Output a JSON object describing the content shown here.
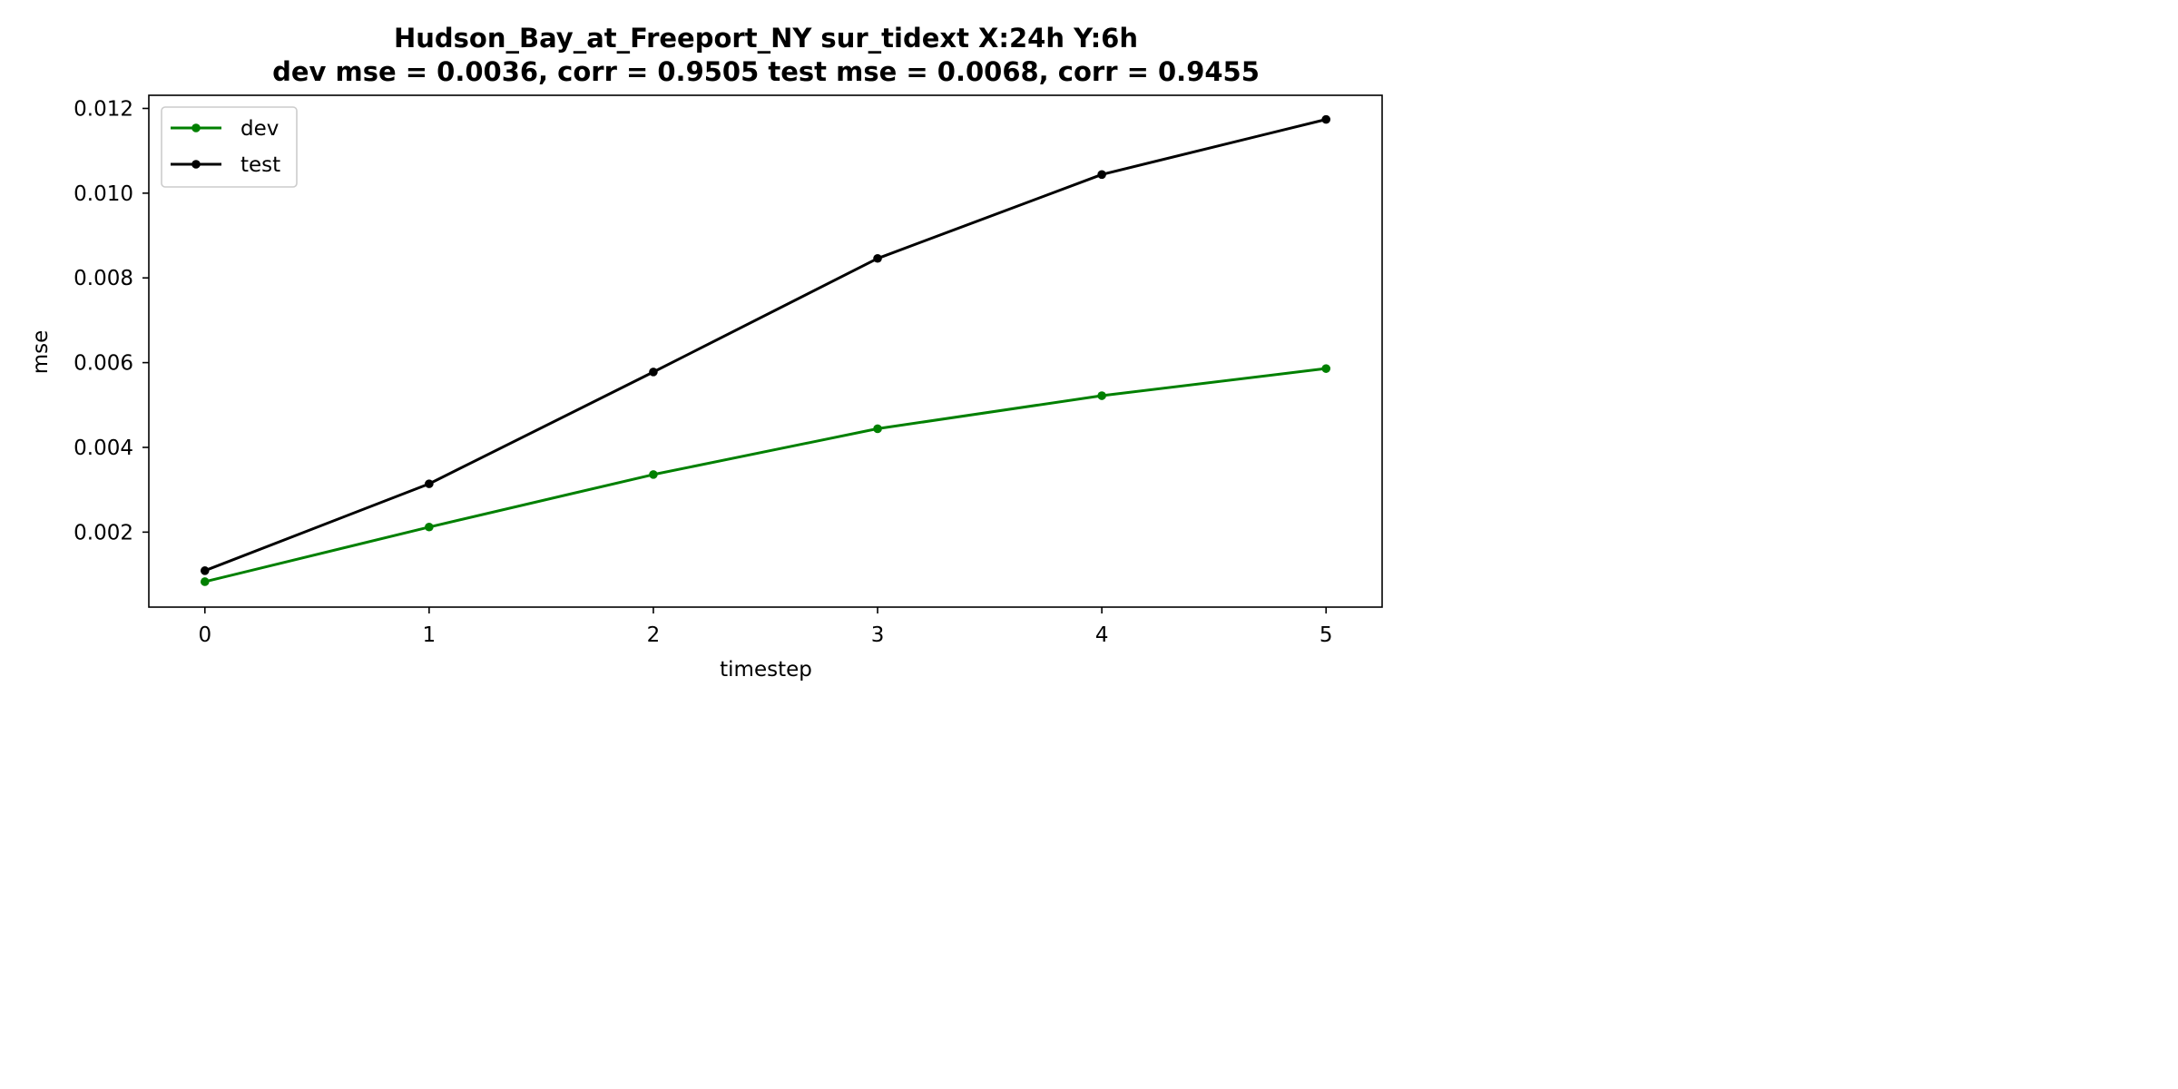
{
  "chart_data": {
    "type": "line",
    "title_line1": "Hudson_Bay_at_Freeport_NY   sur_tidext   X:24h   Y:6h",
    "title_line2": "dev mse = 0.0036, corr = 0.9505   test mse = 0.0068, corr = 0.9455",
    "xlabel": "timestep",
    "ylabel": "mse",
    "x": [
      0,
      1,
      2,
      3,
      4,
      5
    ],
    "xticks": [
      "0",
      "1",
      "2",
      "3",
      "4",
      "5"
    ],
    "yticks": [
      "0.002",
      "0.004",
      "0.006",
      "0.008",
      "0.010",
      "0.012"
    ],
    "ytick_values": [
      0.002,
      0.004,
      0.006,
      0.008,
      0.01,
      0.012
    ],
    "xlim": [
      -0.25,
      5.25
    ],
    "ylim": [
      0.00023,
      0.01231
    ],
    "grid": false,
    "legend_position": "top-left",
    "series": [
      {
        "name": "dev",
        "color": "#008000",
        "values": [
          0.00083,
          0.00212,
          0.00336,
          0.00444,
          0.00522,
          0.00586
        ]
      },
      {
        "name": "test",
        "color": "#000000",
        "values": [
          0.00109,
          0.00314,
          0.00578,
          0.00846,
          0.01044,
          0.01174
        ]
      }
    ]
  }
}
